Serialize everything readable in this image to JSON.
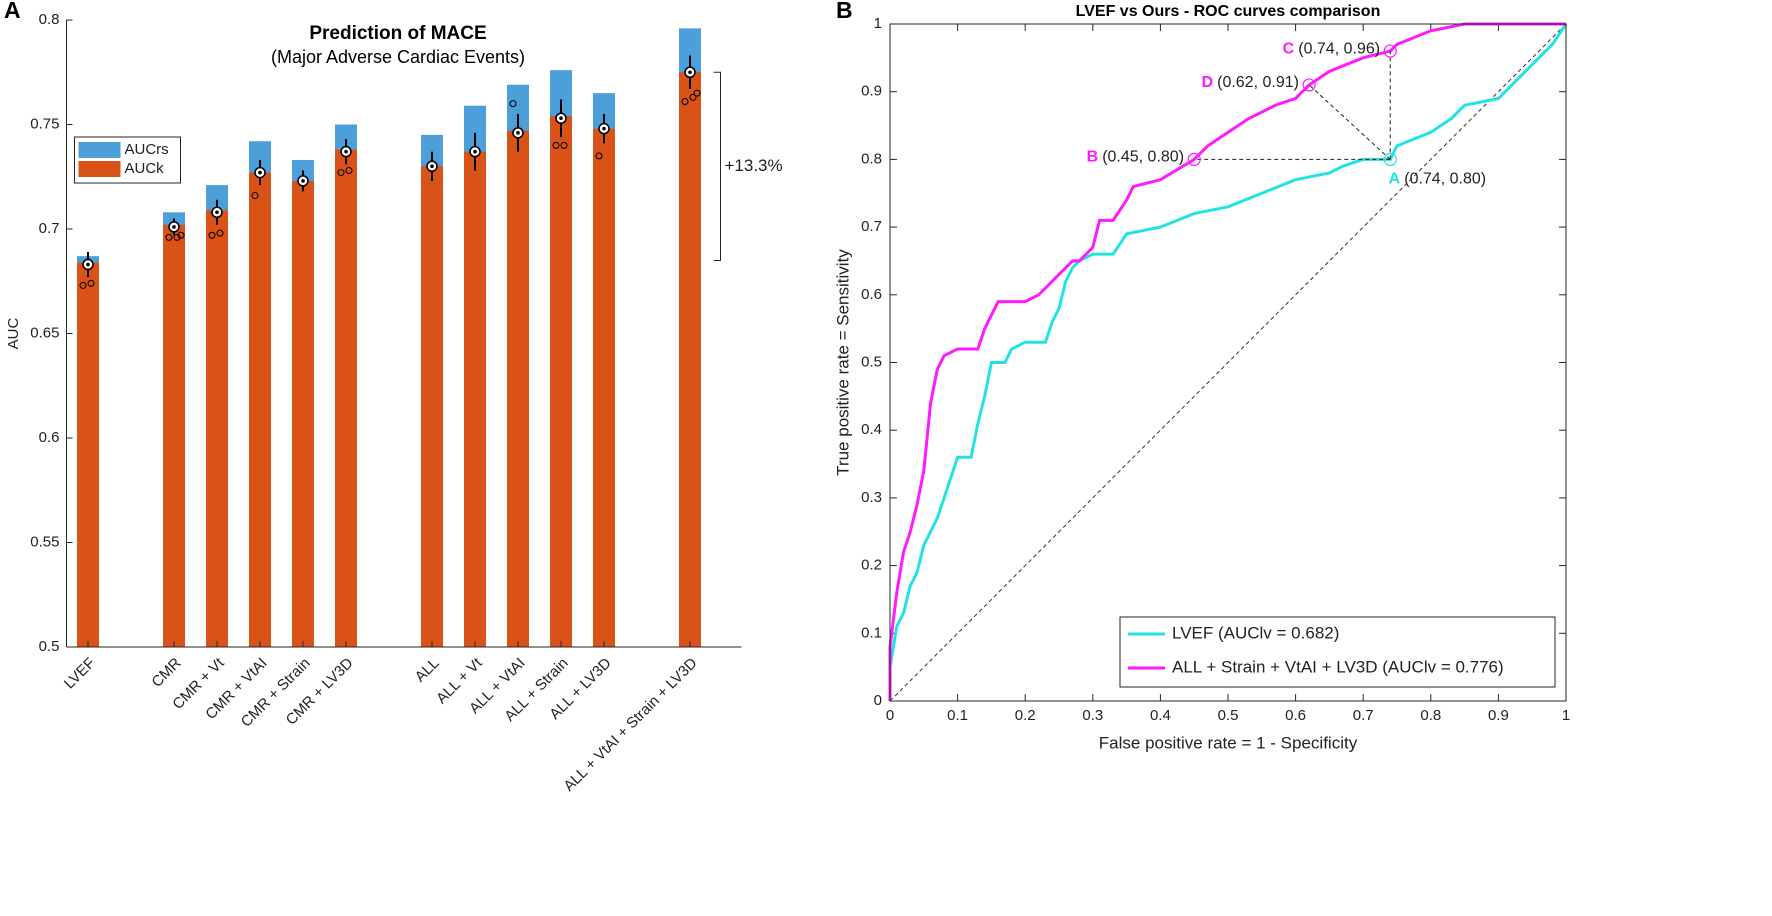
{
  "chart_data": [
    {
      "type": "bar",
      "panel": "A",
      "title": "Prediction of MACE",
      "subtitle": "(Major Adverse Cardiac Events)",
      "ylabel": "AUC",
      "categories": [
        "LVEF",
        null,
        "CMR",
        "CMR + Vt",
        "CMR + VtAI",
        "CMR + Strain",
        "CMR + LV3D",
        null,
        "ALL",
        "ALL + Vt",
        "ALL + VtAI",
        "ALL + Strain",
        "ALL + LV3D",
        null,
        "ALL + VtAI + Strain + LV3D"
      ],
      "series": [
        {
          "name": "AUCrs",
          "color": "#4d9fda",
          "values": [
            0.687,
            null,
            0.708,
            0.721,
            0.742,
            0.733,
            0.75,
            null,
            0.745,
            0.759,
            0.769,
            0.776,
            0.765,
            null,
            0.796
          ]
        },
        {
          "name": "AUCk",
          "color": "#d95319",
          "values": [
            0.684,
            null,
            0.702,
            0.709,
            0.727,
            0.723,
            0.738,
            null,
            0.73,
            0.737,
            0.747,
            0.754,
            0.748,
            null,
            0.775
          ]
        }
      ],
      "means": [
        0.683,
        null,
        0.701,
        0.708,
        0.727,
        0.723,
        0.737,
        null,
        0.73,
        0.737,
        0.746,
        0.753,
        0.748,
        null,
        0.775
      ],
      "errors": [
        0.006,
        null,
        0.004,
        0.006,
        0.006,
        0.005,
        0.006,
        null,
        0.007,
        0.009,
        0.009,
        0.009,
        0.007,
        null,
        0.008
      ],
      "points": [
        [
          0.673,
          0.674
        ],
        null,
        [
          0.696,
          0.696,
          0.697
        ],
        [
          0.697,
          0.698
        ],
        [
          0.716
        ],
        [],
        [
          0.727,
          0.728
        ],
        null,
        [],
        [],
        [
          0.76
        ],
        [
          0.74,
          0.74
        ],
        [
          0.735
        ],
        null,
        [
          0.761,
          0.763,
          0.765
        ]
      ],
      "bracket_label": "+13.3%",
      "ylim": [
        0.5,
        0.8
      ],
      "yticks": [
        0.5,
        0.55,
        0.6,
        0.65,
        0.7,
        0.75,
        0.8
      ],
      "legend": "upper left"
    },
    {
      "type": "line",
      "panel": "B",
      "title": "LVEF vs Ours - ROC curves comparison",
      "xlabel": "False positive rate = 1 - Specificity",
      "ylabel": "True positive rate = Sensitivity",
      "series": [
        {
          "name": "LVEF (AUClv = 0.682)",
          "color": "#22e3e3",
          "x": [
            0,
            0,
            0.01,
            0.02,
            0.03,
            0.04,
            0.05,
            0.06,
            0.07,
            0.08,
            0.09,
            0.1,
            0.12,
            0.13,
            0.14,
            0.15,
            0.17,
            0.18,
            0.2,
            0.23,
            0.24,
            0.25,
            0.26,
            0.27,
            0.28,
            0.3,
            0.33,
            0.35,
            0.4,
            0.45,
            0.5,
            0.55,
            0.6,
            0.65,
            0.67,
            0.7,
            0.74,
            0.75,
            0.8,
            0.83,
            0.85,
            0.9,
            0.93,
            0.96,
            0.98,
            1
          ],
          "values": [
            0,
            0.05,
            0.11,
            0.13,
            0.17,
            0.19,
            0.23,
            0.25,
            0.27,
            0.3,
            0.33,
            0.36,
            0.36,
            0.41,
            0.45,
            0.5,
            0.5,
            0.52,
            0.53,
            0.53,
            0.56,
            0.58,
            0.62,
            0.64,
            0.65,
            0.66,
            0.66,
            0.69,
            0.7,
            0.72,
            0.73,
            0.75,
            0.77,
            0.78,
            0.79,
            0.8,
            0.8,
            0.82,
            0.84,
            0.86,
            0.88,
            0.89,
            0.92,
            0.95,
            0.97,
            1
          ]
        },
        {
          "name": "ALL + Strain + VtAI + LV3D (AUClv = 0.776)",
          "color": "#ff1aff",
          "x": [
            0,
            0,
            0.01,
            0.02,
            0.03,
            0.04,
            0.05,
            0.06,
            0.07,
            0.08,
            0.1,
            0.13,
            0.14,
            0.15,
            0.16,
            0.2,
            0.22,
            0.23,
            0.25,
            0.27,
            0.28,
            0.3,
            0.31,
            0.33,
            0.35,
            0.36,
            0.4,
            0.45,
            0.47,
            0.5,
            0.53,
            0.57,
            0.6,
            0.62,
            0.65,
            0.7,
            0.74,
            0.75,
            0.8,
            0.85,
            1
          ],
          "values": [
            0,
            0.08,
            0.16,
            0.22,
            0.25,
            0.29,
            0.34,
            0.44,
            0.49,
            0.51,
            0.52,
            0.52,
            0.55,
            0.57,
            0.59,
            0.59,
            0.6,
            0.61,
            0.63,
            0.65,
            0.65,
            0.67,
            0.71,
            0.71,
            0.74,
            0.76,
            0.77,
            0.8,
            0.82,
            0.84,
            0.86,
            0.88,
            0.89,
            0.91,
            0.93,
            0.95,
            0.96,
            0.97,
            0.99,
            1,
            1
          ]
        }
      ],
      "annotations": [
        {
          "letter": "A",
          "label": "(0.74, 0.80)",
          "x": 0.74,
          "y": 0.8,
          "color": "#22e3e3"
        },
        {
          "letter": "B",
          "label": "(0.45, 0.80)",
          "x": 0.45,
          "y": 0.8,
          "color": "#ff1aff"
        },
        {
          "letter": "C",
          "label": "(0.74, 0.96)",
          "x": 0.74,
          "y": 0.96,
          "color": "#ff1aff"
        },
        {
          "letter": "D",
          "label": "(0.62, 0.91)",
          "x": 0.62,
          "y": 0.91,
          "color": "#ff1aff"
        }
      ],
      "xlim": [
        0,
        1
      ],
      "ylim": [
        0,
        1
      ],
      "xticks": [
        0,
        0.1,
        0.2,
        0.3,
        0.4,
        0.5,
        0.6,
        0.7,
        0.8,
        0.9,
        1
      ],
      "yticks": [
        0,
        0.1,
        0.2,
        0.3,
        0.4,
        0.5,
        0.6,
        0.7,
        0.8,
        0.9,
        1
      ],
      "legend": "lower right"
    }
  ]
}
